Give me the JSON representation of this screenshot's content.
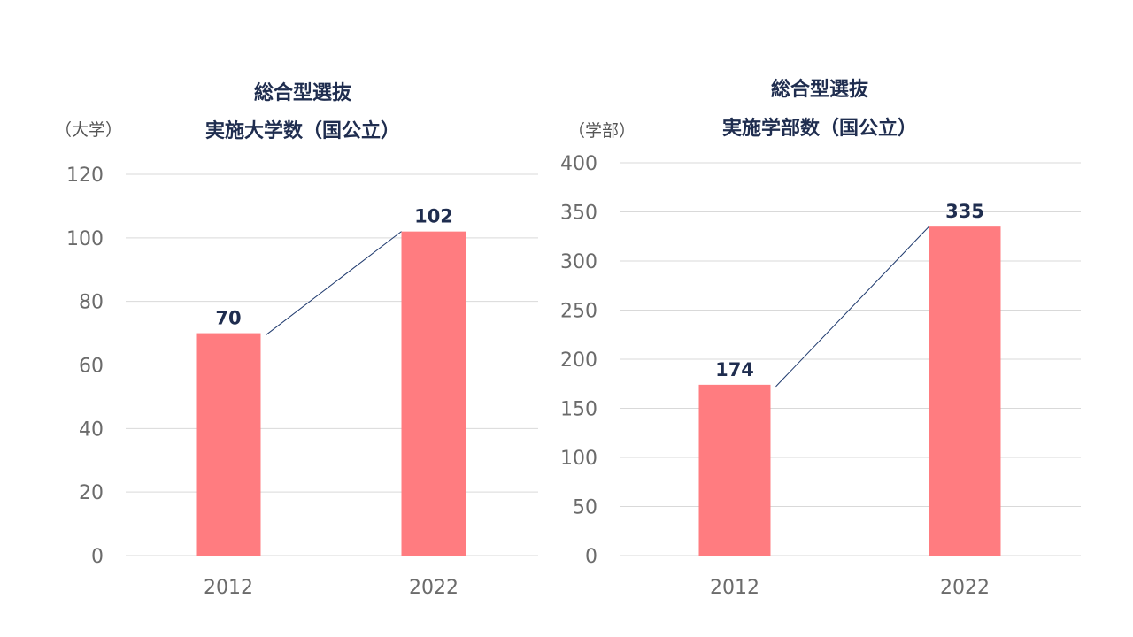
{
  "chart_data": [
    {
      "type": "bar",
      "title": [
        "総合型選抜",
        "実施大学数（国公立）"
      ],
      "ylabel": "（大学）",
      "categories": [
        "2012",
        "2022"
      ],
      "values": [
        70,
        102
      ],
      "ylim": [
        0,
        120
      ],
      "yticks": [
        0,
        20,
        40,
        60,
        80,
        100,
        120
      ],
      "grid": true,
      "bar_color": "#ff7c80",
      "connector_line": true
    },
    {
      "type": "bar",
      "title": [
        "総合型選抜",
        "実施学部数（国公立）"
      ],
      "ylabel": "（学部）",
      "categories": [
        "2012",
        "2022"
      ],
      "values": [
        174,
        335
      ],
      "ylim": [
        0,
        400
      ],
      "yticks": [
        0,
        50,
        100,
        150,
        200,
        250,
        300,
        350,
        400
      ],
      "grid": true,
      "bar_color": "#ff7c80",
      "connector_line": true
    }
  ]
}
